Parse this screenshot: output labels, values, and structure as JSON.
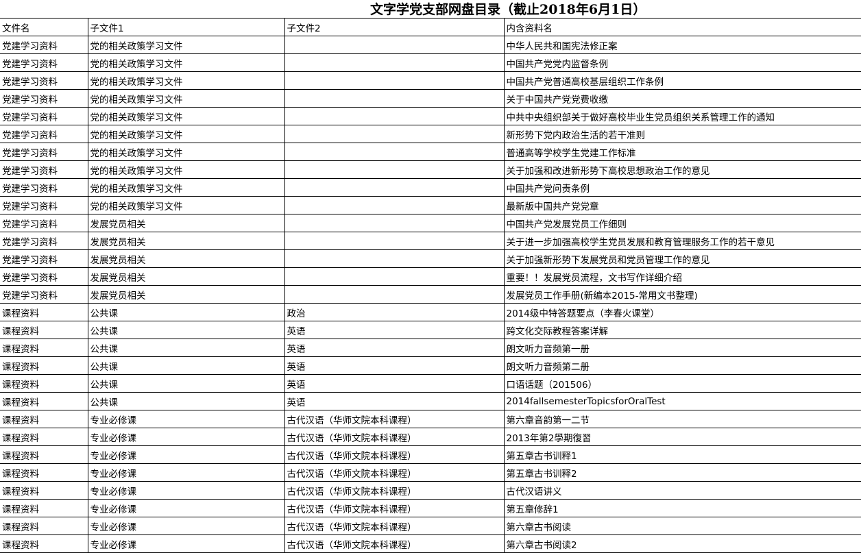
{
  "title": "文字学党支部网盘目录（截止2018年6月1日）",
  "headers": [
    "文件名",
    "子文件1",
    "子文件2",
    "内含资料名"
  ],
  "rows": [
    [
      "党建学习资料",
      "党的相关政策学习文件",
      "",
      "中华人民共和国宪法修正案"
    ],
    [
      "党建学习资料",
      "党的相关政策学习文件",
      "",
      "中国共产党党内监督条例"
    ],
    [
      "党建学习资料",
      "党的相关政策学习文件",
      "",
      "中国共产党普通高校基层组织工作条例"
    ],
    [
      "党建学习资料",
      "党的相关政策学习文件",
      "",
      "关于中国共产党党费收缴"
    ],
    [
      "党建学习资料",
      "党的相关政策学习文件",
      "",
      "中共中央组织部关于做好高校毕业生党员组织关系管理工作的通知"
    ],
    [
      "党建学习资料",
      "党的相关政策学习文件",
      "",
      "新形势下党内政治生活的若干准则"
    ],
    [
      "党建学习资料",
      "党的相关政策学习文件",
      "",
      "普通高等学校学生党建工作标准"
    ],
    [
      "党建学习资料",
      "党的相关政策学习文件",
      "",
      "关于加强和改进新形势下高校思想政治工作的意见"
    ],
    [
      "党建学习资料",
      "党的相关政策学习文件",
      "",
      "中国共产党问责条例"
    ],
    [
      "党建学习资料",
      "党的相关政策学习文件",
      "",
      "最新版中国共产党党章"
    ],
    [
      "党建学习资料",
      "发展党员相关",
      "",
      "中国共产党发展党员工作细则"
    ],
    [
      "党建学习资料",
      "发展党员相关",
      "",
      "关于进一步加强高校学生党员发展和教育管理服务工作的若干意见"
    ],
    [
      "党建学习资料",
      "发展党员相关",
      "",
      "关于加强新形势下发展党员和党员管理工作的意见"
    ],
    [
      "党建学习资料",
      "发展党员相关",
      "",
      "重要！！发展党员流程，文书写作详细介绍"
    ],
    [
      "党建学习资料",
      "发展党员相关",
      "",
      "发展党员工作手册(新编本2015-常用文书整理)"
    ],
    [
      "课程资料",
      "公共课",
      "政治",
      "2014级中特答题要点（李春火课堂）"
    ],
    [
      "课程资料",
      "公共课",
      "英语",
      "跨文化交际教程答案详解"
    ],
    [
      "课程资料",
      "公共课",
      "英语",
      "朗文听力音频第一册"
    ],
    [
      "课程资料",
      "公共课",
      "英语",
      "朗文听力音频第二册"
    ],
    [
      "课程资料",
      "公共课",
      "英语",
      "口语话题（201506）"
    ],
    [
      "课程资料",
      "公共课",
      "英语",
      "2014fallsemesterTopicsforOralTest"
    ],
    [
      "课程资料",
      "专业必修课",
      "古代汉语（华师文院本科课程）",
      "第六章音韵第一二节"
    ],
    [
      "课程资料",
      "专业必修课",
      "古代汉语（华师文院本科课程）",
      "2013年第2學期復習"
    ],
    [
      "课程资料",
      "专业必修课",
      "古代汉语（华师文院本科课程）",
      "第五章古书训释1"
    ],
    [
      "课程资料",
      "专业必修课",
      "古代汉语（华师文院本科课程）",
      "第五章古书训释2"
    ],
    [
      "课程资料",
      "专业必修课",
      "古代汉语（华师文院本科课程）",
      "古代汉语讲义"
    ],
    [
      "课程资料",
      "专业必修课",
      "古代汉语（华师文院本科课程）",
      "第五章修辞1"
    ],
    [
      "课程资料",
      "专业必修课",
      "古代汉语（华师文院本科课程）",
      "第六章古书阅读"
    ],
    [
      "课程资料",
      "专业必修课",
      "古代汉语（华师文院本科课程）",
      "第六章古书阅读2"
    ]
  ]
}
